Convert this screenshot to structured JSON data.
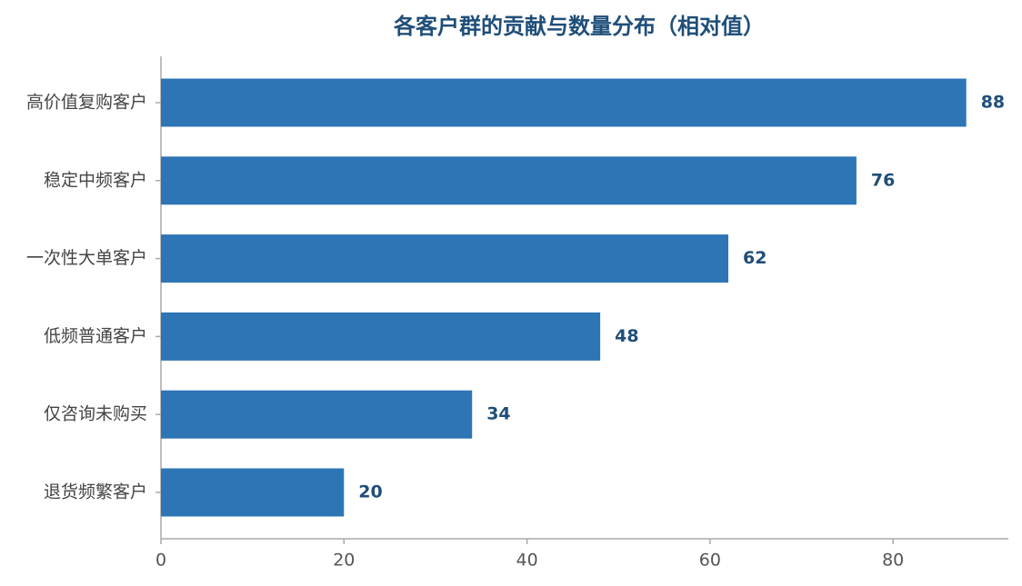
{
  "chart_data": {
    "type": "barh",
    "title": "各客户群的贡献与数量分布（相对值）",
    "categories": [
      "高价值复购客户",
      "稳定中频客户",
      "一次性大单客户",
      "低频普通客户",
      "仅咨询未购买",
      "退货频繁客户"
    ],
    "values": [
      88,
      76,
      62,
      48,
      34,
      20
    ],
    "color": "#2e75b6",
    "xlim": [
      0,
      92.6
    ],
    "xticks": [
      0,
      20,
      40,
      60,
      80
    ],
    "grid": false
  }
}
